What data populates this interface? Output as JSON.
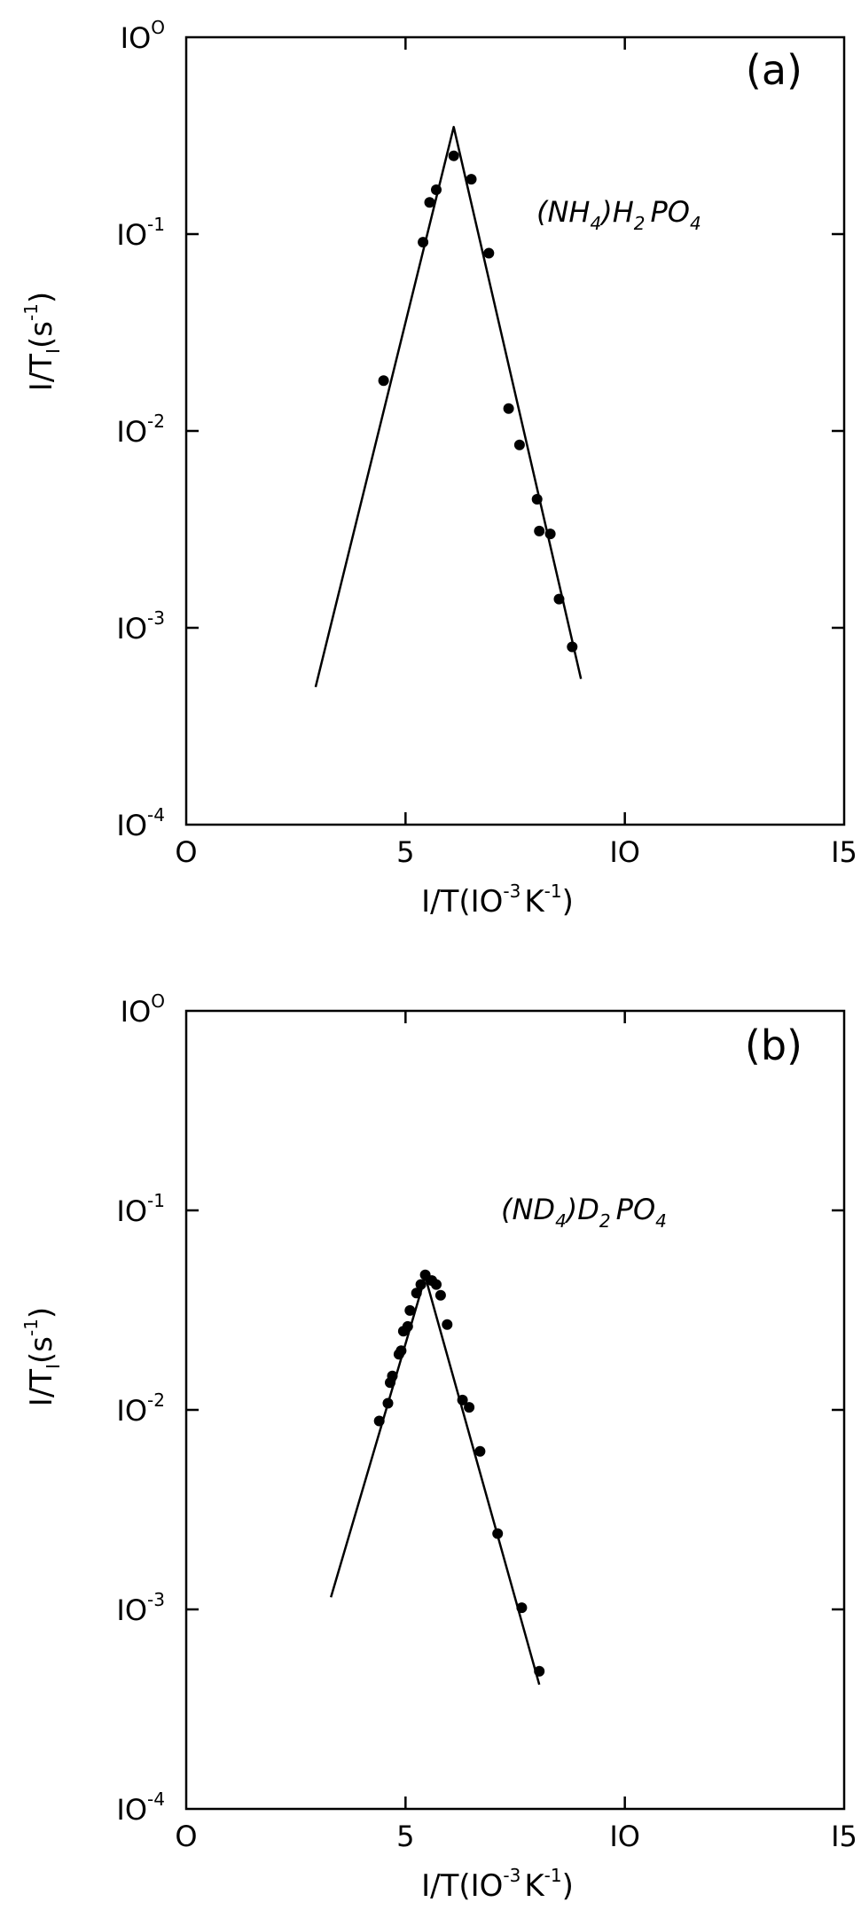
{
  "chart_data": [
    {
      "type": "scatter",
      "panel_label": "(a)",
      "compound": {
        "part1": "(NH",
        "sub1": "4",
        "part2": ")H",
        "sub2": "2",
        "part3": "PO",
        "sub3": "4"
      },
      "xlabel": {
        "main": "I/T(IO",
        "sup1": "-3",
        "mid": "K",
        "sup2": "-1",
        "end": ")"
      },
      "ylabel": {
        "main": "I/T",
        "sub": "I",
        "mid": "(s",
        "sup": "-1",
        "end": ")"
      },
      "xlim": [
        0,
        15
      ],
      "ylim": [
        0.0001,
        1
      ],
      "yscale": "log",
      "xticks": [
        "O",
        "5",
        "IO",
        "I5"
      ],
      "yticks": [
        {
          "base": "IO",
          "exp": "-4"
        },
        {
          "base": "IO",
          "exp": "-3"
        },
        {
          "base": "IO",
          "exp": "-2"
        },
        {
          "base": "IO",
          "exp": "-1"
        },
        {
          "base": "IO",
          "exp": "O"
        }
      ],
      "points": [
        {
          "x": 4.5,
          "y": 0.018
        },
        {
          "x": 5.4,
          "y": 0.091
        },
        {
          "x": 5.55,
          "y": 0.145
        },
        {
          "x": 5.7,
          "y": 0.168
        },
        {
          "x": 6.1,
          "y": 0.25
        },
        {
          "x": 6.5,
          "y": 0.19
        },
        {
          "x": 6.9,
          "y": 0.08
        },
        {
          "x": 7.35,
          "y": 0.013
        },
        {
          "x": 7.6,
          "y": 0.0085
        },
        {
          "x": 8.0,
          "y": 0.0045
        },
        {
          "x": 8.05,
          "y": 0.0031
        },
        {
          "x": 8.3,
          "y": 0.003
        },
        {
          "x": 8.5,
          "y": 0.0014
        },
        {
          "x": 8.8,
          "y": 0.0008
        }
      ],
      "fit_line": [
        {
          "x": 2.95,
          "y": 0.0005
        },
        {
          "x": 6.1,
          "y": 0.35
        },
        {
          "x": 9.0,
          "y": 0.00055
        }
      ]
    },
    {
      "type": "scatter",
      "panel_label": "(b)",
      "compound": {
        "part1": "(ND",
        "sub1": "4",
        "part2": ")D",
        "sub2": "2",
        "part3": "PO",
        "sub3": "4"
      },
      "xlabel": {
        "main": "I/T(IO",
        "sup1": "-3",
        "mid": "K",
        "sup2": "-1",
        "end": ")"
      },
      "ylabel": {
        "main": "I/T",
        "sub": "I",
        "mid": "(s",
        "sup": "-1",
        "end": ")"
      },
      "xlim": [
        0,
        15
      ],
      "ylim": [
        0.0001,
        1
      ],
      "yscale": "log",
      "xticks": [
        "O",
        "5",
        "IO",
        "I5"
      ],
      "yticks": [
        {
          "base": "IO",
          "exp": "-4"
        },
        {
          "base": "IO",
          "exp": "-3"
        },
        {
          "base": "IO",
          "exp": "-2"
        },
        {
          "base": "IO",
          "exp": "-1"
        },
        {
          "base": "IO",
          "exp": "O"
        }
      ],
      "points": [
        {
          "x": 4.4,
          "y": 0.0088
        },
        {
          "x": 4.6,
          "y": 0.0108
        },
        {
          "x": 4.65,
          "y": 0.0137
        },
        {
          "x": 4.7,
          "y": 0.0148
        },
        {
          "x": 4.85,
          "y": 0.019
        },
        {
          "x": 4.9,
          "y": 0.0198
        },
        {
          "x": 4.95,
          "y": 0.0248
        },
        {
          "x": 5.05,
          "y": 0.0262
        },
        {
          "x": 5.1,
          "y": 0.0315
        },
        {
          "x": 5.25,
          "y": 0.0385
        },
        {
          "x": 5.35,
          "y": 0.0425
        },
        {
          "x": 5.45,
          "y": 0.0475
        },
        {
          "x": 5.6,
          "y": 0.0445
        },
        {
          "x": 5.7,
          "y": 0.0425
        },
        {
          "x": 5.8,
          "y": 0.0375
        },
        {
          "x": 5.95,
          "y": 0.0268
        },
        {
          "x": 6.3,
          "y": 0.0112
        },
        {
          "x": 6.45,
          "y": 0.0103
        },
        {
          "x": 6.7,
          "y": 0.0062
        },
        {
          "x": 7.1,
          "y": 0.0024
        },
        {
          "x": 7.65,
          "y": 0.00102
        },
        {
          "x": 8.05,
          "y": 0.00049
        }
      ],
      "fit_line": [
        {
          "x": 3.3,
          "y": 0.00115
        },
        {
          "x": 5.45,
          "y": 0.0465
        },
        {
          "x": 8.05,
          "y": 0.00042
        }
      ]
    }
  ]
}
